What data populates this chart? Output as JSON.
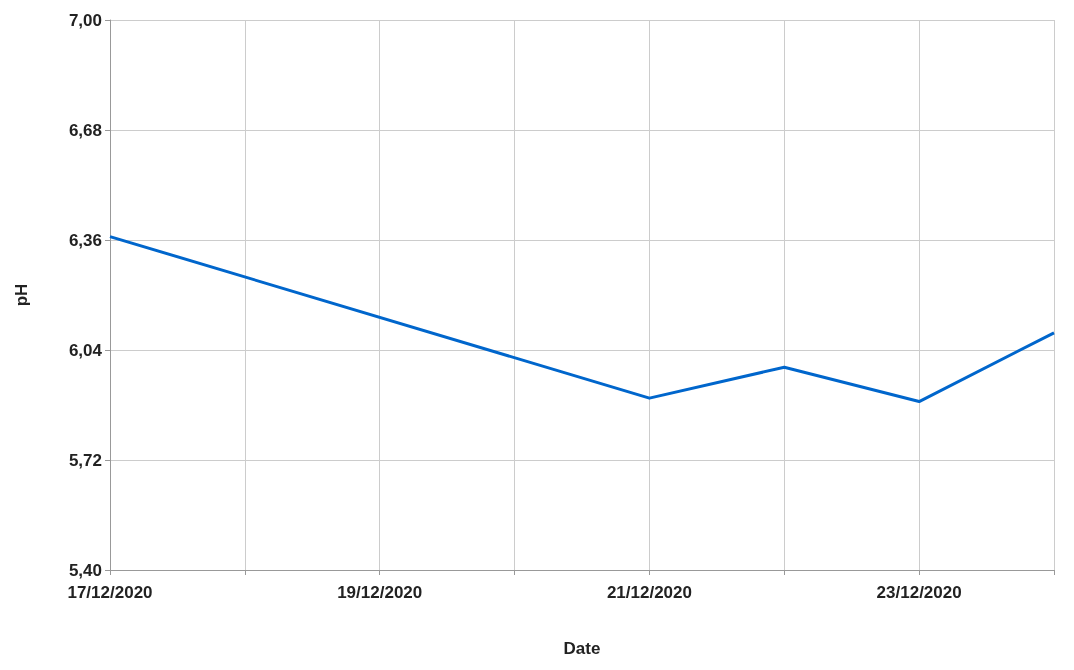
{
  "chart_data": {
    "type": "line",
    "xlabel": "Date",
    "ylabel": "pH",
    "x": [
      "2020-12-17",
      "2020-12-21",
      "2020-12-22",
      "2020-12-23",
      "2020-12-24"
    ],
    "series": [
      {
        "color": "#0066cc",
        "values": [
          6.37,
          5.9,
          5.99,
          5.89,
          6.09
        ]
      }
    ],
    "xlim": [
      "2020-12-17",
      "2020-12-24"
    ],
    "xticks": [
      {
        "value": "2020-12-17",
        "label": "17/12/2020"
      },
      {
        "value": "2020-12-18",
        "label": null
      },
      {
        "value": "2020-12-19",
        "label": "19/12/2020"
      },
      {
        "value": "2020-12-20",
        "label": null
      },
      {
        "value": "2020-12-21",
        "label": "21/12/2020"
      },
      {
        "value": "2020-12-22",
        "label": null
      },
      {
        "value": "2020-12-23",
        "label": "23/12/2020"
      },
      {
        "value": "2020-12-24",
        "label": null
      }
    ],
    "ylim": [
      5.4,
      7.0
    ],
    "yticks": [
      {
        "value": 5.4,
        "label": "5,40"
      },
      {
        "value": 5.72,
        "label": "5,72"
      },
      {
        "value": 6.04,
        "label": "6,04"
      },
      {
        "value": 6.36,
        "label": "6,36"
      },
      {
        "value": 6.68,
        "label": "6,68"
      },
      {
        "value": 7.0,
        "label": "7,00"
      }
    ],
    "grid": true,
    "marker": "none",
    "line_style": "solid"
  }
}
